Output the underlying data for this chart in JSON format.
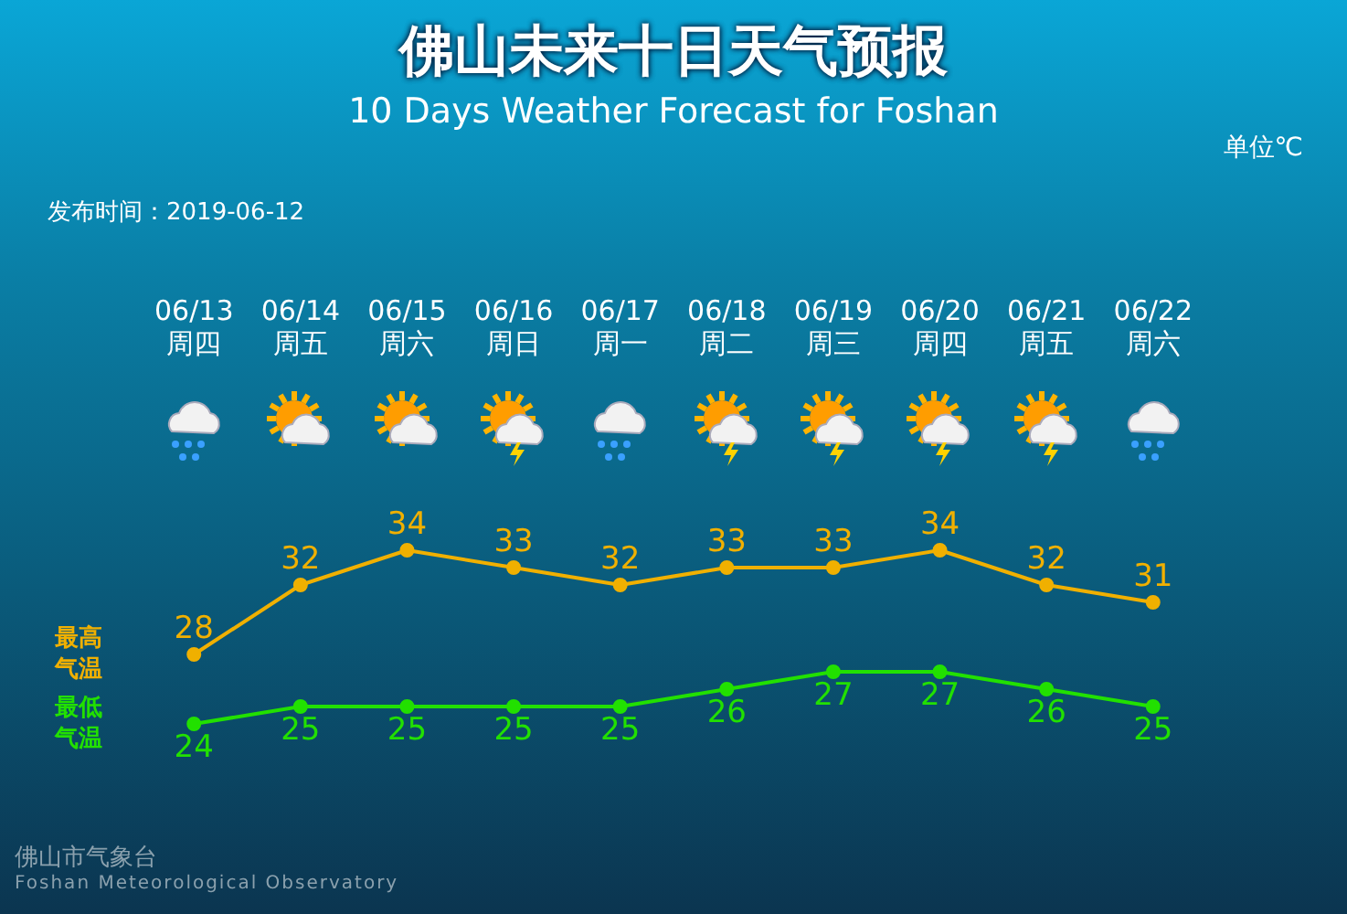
{
  "chart_data": {
    "type": "line",
    "title": "佛山未来十日天气预报",
    "subtitle": "10 Days Weather Forecast for Foshan",
    "categories": [
      "06/13\n周四",
      "06/14\n周五",
      "06/15\n周六",
      "06/16\n周日",
      "06/17\n周一",
      "06/18\n周二",
      "06/19\n周三",
      "06/20\n周四",
      "06/21\n周五",
      "06/22\n周六"
    ],
    "series": [
      {
        "name": "最高气温",
        "color": "#f0b000",
        "values": [
          28,
          32,
          34,
          33,
          32,
          33,
          33,
          34,
          32,
          31
        ]
      },
      {
        "name": "最低气温",
        "color": "#22e000",
        "values": [
          24,
          25,
          25,
          25,
          25,
          26,
          27,
          27,
          26,
          25
        ]
      }
    ],
    "annotations": [
      "单位℃",
      "发布时间：2019-06-12",
      "佛山市气象台",
      "Foshan Meteorological Observatory"
    ],
    "data_labels": true,
    "marker": "circle",
    "line_style": "solid",
    "legend": false,
    "grid": false,
    "tick_labels": "x"
  }
}
